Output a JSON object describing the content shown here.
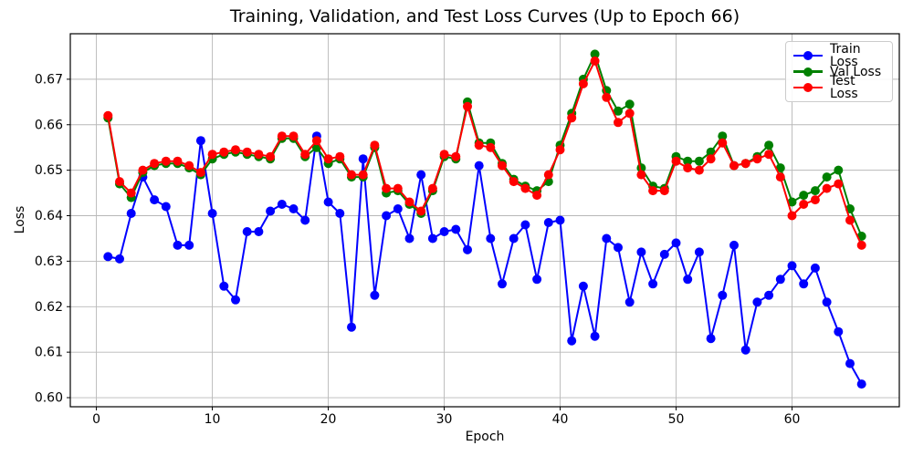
{
  "chart_data": {
    "type": "line",
    "title": "Training, Validation, and Test Loss Curves (Up to Epoch 66)",
    "xlabel": "Epoch",
    "ylabel": "Loss",
    "xlim": [
      -2.25,
      69.25
    ],
    "ylim": [
      0.598,
      0.68
    ],
    "grid": true,
    "legend_position": "upper right",
    "marker": "circle",
    "xticks": {
      "values": [
        0,
        10,
        20,
        30,
        40,
        50,
        60
      ],
      "labels": [
        "0",
        "10",
        "20",
        "30",
        "40",
        "50",
        "60"
      ]
    },
    "yticks": {
      "values": [
        0.6,
        0.61,
        0.62,
        0.63,
        0.64,
        0.65,
        0.66,
        0.67
      ],
      "labels": [
        "0.60",
        "0.61",
        "0.62",
        "0.63",
        "0.64",
        "0.65",
        "0.66",
        "0.67"
      ]
    },
    "x": [
      1,
      2,
      3,
      4,
      5,
      6,
      7,
      8,
      9,
      10,
      11,
      12,
      13,
      14,
      15,
      16,
      17,
      18,
      19,
      20,
      21,
      22,
      23,
      24,
      25,
      26,
      27,
      28,
      29,
      30,
      31,
      32,
      33,
      34,
      35,
      36,
      37,
      38,
      39,
      40,
      41,
      42,
      43,
      44,
      45,
      46,
      47,
      48,
      49,
      50,
      51,
      52,
      53,
      54,
      55,
      56,
      57,
      58,
      59,
      60,
      61,
      62,
      63,
      64,
      65,
      66
    ],
    "series": [
      {
        "name": "Train Loss",
        "color": "#0000ff",
        "values": [
          0.631,
          0.6305,
          0.6405,
          0.6485,
          0.6435,
          0.642,
          0.6335,
          0.6335,
          0.6565,
          0.6405,
          0.6245,
          0.6215,
          0.6365,
          0.6365,
          0.641,
          0.6425,
          0.6415,
          0.639,
          0.6575,
          0.643,
          0.6405,
          0.6155,
          0.6525,
          0.6225,
          0.64,
          0.6415,
          0.635,
          0.649,
          0.635,
          0.6365,
          0.637,
          0.6325,
          0.651,
          0.635,
          0.625,
          0.635,
          0.638,
          0.626,
          0.6385,
          0.639,
          0.6125,
          0.6245,
          0.6135,
          0.635,
          0.633,
          0.621,
          0.632,
          0.625,
          0.6315,
          0.634,
          0.626,
          0.632,
          0.613,
          0.6225,
          0.6335,
          0.6105,
          0.621,
          0.6225,
          0.626,
          0.629,
          0.625,
          0.6285,
          0.621,
          0.6145,
          0.6075,
          0.603
        ]
      },
      {
        "name": "Val Loss",
        "color": "#008000",
        "values": [
          0.6615,
          0.647,
          0.644,
          0.6495,
          0.651,
          0.6515,
          0.6515,
          0.6505,
          0.649,
          0.6525,
          0.6535,
          0.654,
          0.6535,
          0.653,
          0.6525,
          0.657,
          0.657,
          0.653,
          0.655,
          0.6515,
          0.6525,
          0.6485,
          0.6485,
          0.655,
          0.645,
          0.6455,
          0.6425,
          0.6405,
          0.6455,
          0.653,
          0.6525,
          0.665,
          0.656,
          0.656,
          0.6515,
          0.648,
          0.6465,
          0.6455,
          0.6475,
          0.6555,
          0.6625,
          0.67,
          0.6755,
          0.6675,
          0.663,
          0.6645,
          0.6505,
          0.6465,
          0.646,
          0.653,
          0.652,
          0.652,
          0.654,
          0.6575,
          0.651,
          0.6515,
          0.653,
          0.6555,
          0.6505,
          0.643,
          0.6445,
          0.6455,
          0.6485,
          0.65,
          0.6415,
          0.6355
        ]
      },
      {
        "name": "Test Loss",
        "color": "#ff0000",
        "values": [
          0.662,
          0.6475,
          0.645,
          0.65,
          0.6515,
          0.652,
          0.652,
          0.651,
          0.6495,
          0.6535,
          0.654,
          0.6545,
          0.654,
          0.6535,
          0.653,
          0.6575,
          0.6575,
          0.6535,
          0.6565,
          0.6525,
          0.653,
          0.649,
          0.649,
          0.6555,
          0.646,
          0.646,
          0.643,
          0.641,
          0.646,
          0.6535,
          0.653,
          0.664,
          0.6555,
          0.655,
          0.651,
          0.6475,
          0.646,
          0.6445,
          0.649,
          0.6545,
          0.6615,
          0.669,
          0.674,
          0.666,
          0.6605,
          0.6625,
          0.649,
          0.6455,
          0.6455,
          0.652,
          0.6505,
          0.65,
          0.6525,
          0.656,
          0.651,
          0.6515,
          0.6525,
          0.6535,
          0.6485,
          0.64,
          0.6425,
          0.6435,
          0.646,
          0.647,
          0.639,
          0.6335
        ]
      }
    ]
  }
}
